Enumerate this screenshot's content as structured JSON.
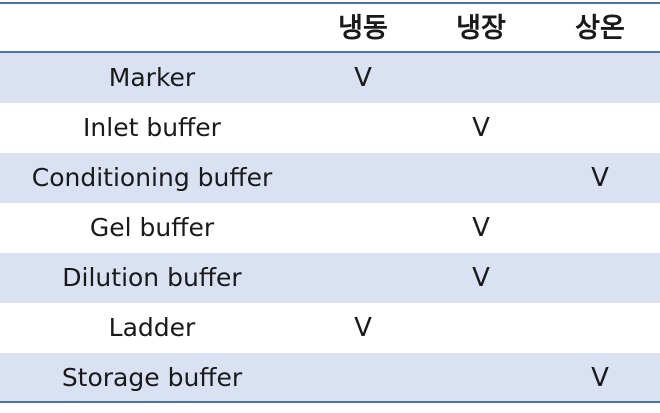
{
  "header": {
    "name": "",
    "col1": "냉동",
    "col2": "냉장",
    "col3": "상온"
  },
  "rows": [
    {
      "name": "Marker",
      "col1": "V",
      "col2": "",
      "col3": ""
    },
    {
      "name": "Inlet buffer",
      "col1": "",
      "col2": "V",
      "col3": ""
    },
    {
      "name": "Conditioning buffer",
      "col1": "",
      "col2": "",
      "col3": "V"
    },
    {
      "name": "Gel buffer",
      "col1": "",
      "col2": "V",
      "col3": ""
    },
    {
      "name": "Dilution buffer",
      "col1": "",
      "col2": "V",
      "col3": ""
    },
    {
      "name": "Ladder",
      "col1": "V",
      "col2": "",
      "col3": ""
    },
    {
      "name": "Storage buffer",
      "col1": "",
      "col2": "",
      "col3": "V"
    }
  ],
  "colors": {
    "rule": "#4a72b0",
    "band": "#d9e1f2"
  }
}
